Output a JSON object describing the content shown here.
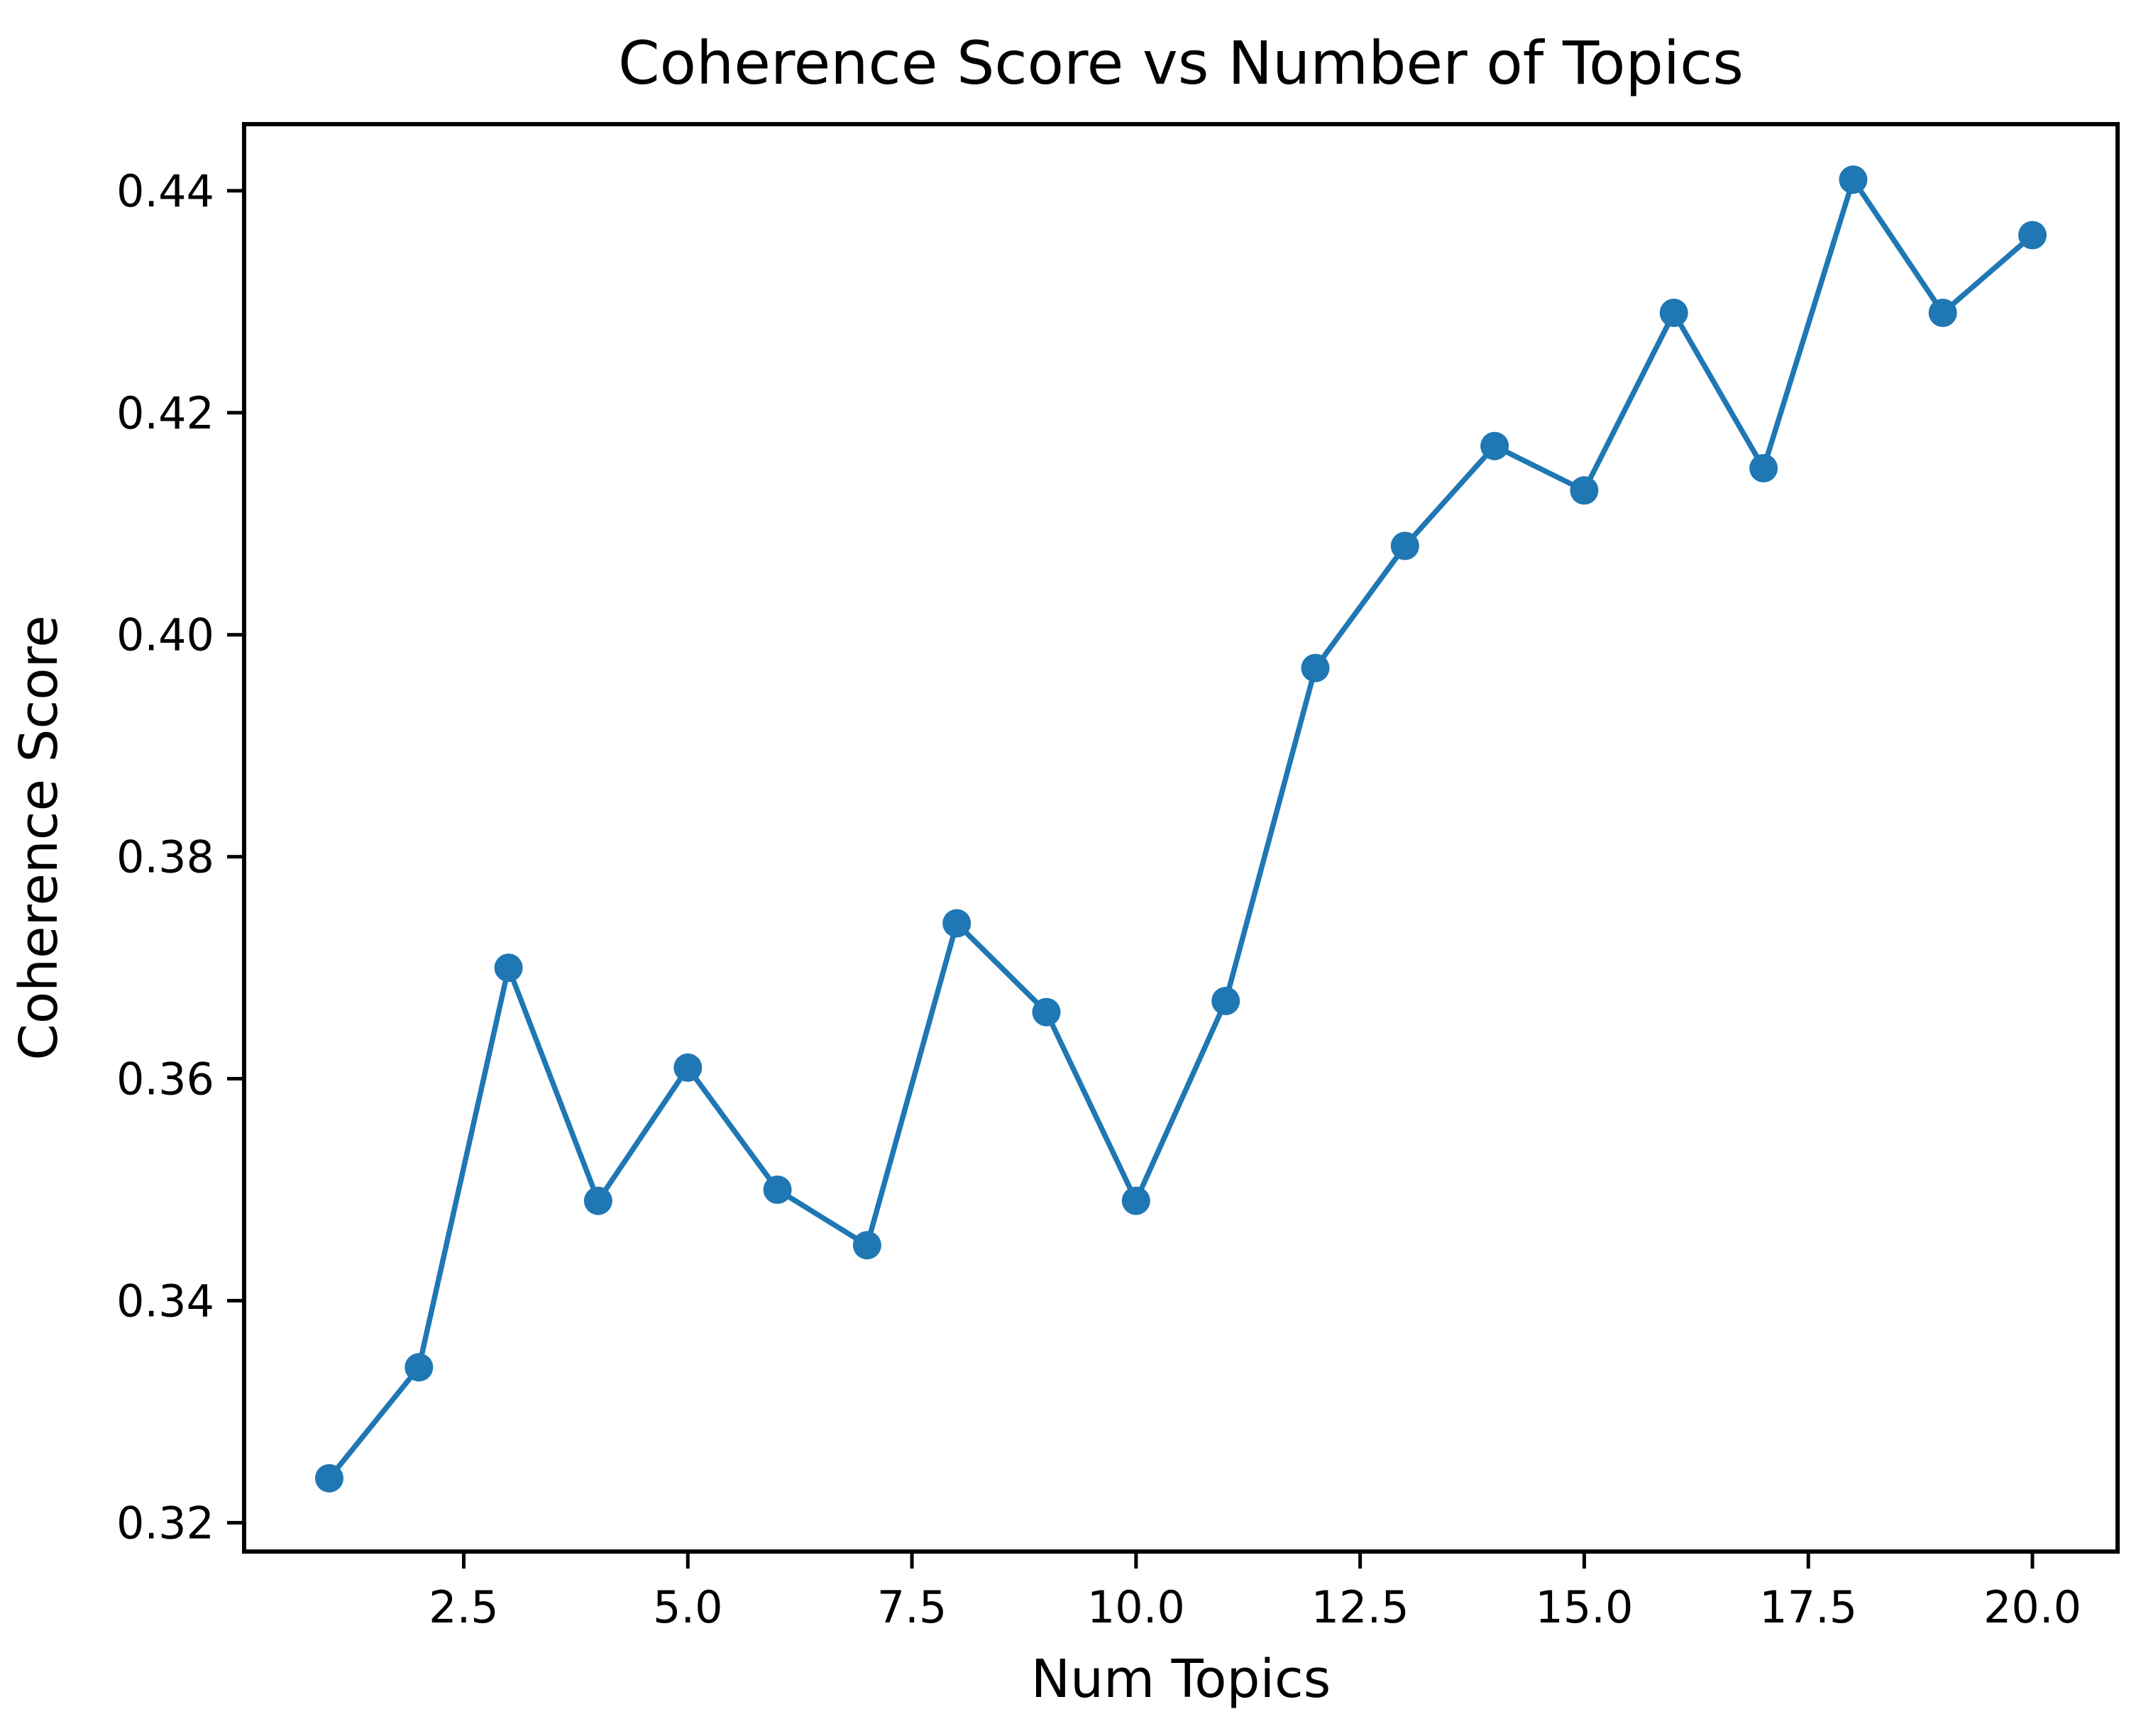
{
  "figure": {
    "background_color": "#ffffff",
    "spine_color": "#000000",
    "text_color": "#000000"
  },
  "chart_data": {
    "type": "line",
    "title": "Coherence Score vs Number of Topics",
    "xlabel": "Num Topics",
    "ylabel": "Coherence Score",
    "series": [
      {
        "name": "coherence",
        "x": [
          1,
          2,
          3,
          4,
          5,
          6,
          7,
          8,
          9,
          10,
          11,
          12,
          13,
          14,
          15,
          16,
          17,
          18,
          19,
          20
        ],
        "y": [
          0.324,
          0.334,
          0.37,
          0.349,
          0.361,
          0.35,
          0.345,
          0.374,
          0.366,
          0.349,
          0.367,
          0.397,
          0.408,
          0.417,
          0.413,
          0.429,
          0.415,
          0.441,
          0.429,
          0.436
        ]
      }
    ],
    "marker": "o",
    "line_color": "#1f77b4",
    "marker_color": "#1f77b4",
    "grid": false,
    "legend_position": "none",
    "xlim": [
      0.05,
      20.95
    ],
    "ylim": [
      0.3174,
      0.446
    ],
    "xticks": {
      "values": [
        2.5,
        5.0,
        7.5,
        10.0,
        12.5,
        15.0,
        17.5,
        20.0
      ],
      "labels": [
        "2.5",
        "5.0",
        "7.5",
        "10.0",
        "12.5",
        "15.0",
        "17.5",
        "20.0"
      ]
    },
    "yticks": {
      "values": [
        0.32,
        0.34,
        0.36,
        0.38,
        0.4,
        0.42,
        0.44
      ],
      "labels": [
        "0.32",
        "0.34",
        "0.36",
        "0.38",
        "0.40",
        "0.42",
        "0.44"
      ]
    }
  }
}
